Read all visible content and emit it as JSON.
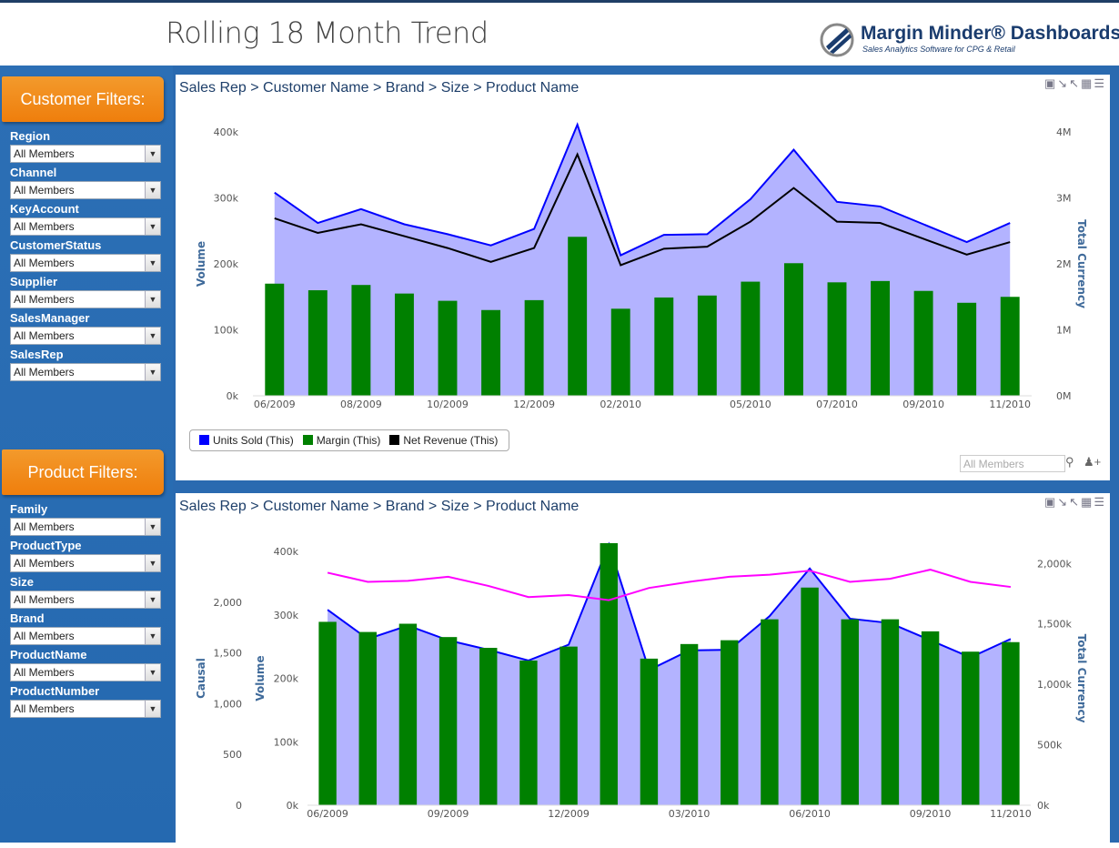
{
  "header": {
    "title": "Rolling 18 Month Trend",
    "logo_title": "Margin Minder® Dashboards",
    "logo_tagline": "Sales Analytics Software for CPG & Retail"
  },
  "customer_filters": {
    "heading": "Customer Filters:",
    "fields": [
      {
        "label": "Region",
        "value": "All Members"
      },
      {
        "label": "Channel",
        "value": "All Members"
      },
      {
        "label": "KeyAccount",
        "value": "All Members"
      },
      {
        "label": "CustomerStatus",
        "value": "All Members"
      },
      {
        "label": "Supplier",
        "value": "All Members"
      },
      {
        "label": "SalesManager",
        "value": "All Members"
      },
      {
        "label": "SalesRep",
        "value": "All Members"
      }
    ]
  },
  "product_filters": {
    "heading": "Product Filters:",
    "fields": [
      {
        "label": "Family",
        "value": "All Members"
      },
      {
        "label": "ProductType",
        "value": "All Members"
      },
      {
        "label": "Size",
        "value": "All Members"
      },
      {
        "label": "Brand",
        "value": "All Members"
      },
      {
        "label": "ProductName",
        "value": "All Members"
      },
      {
        "label": "ProductNumber",
        "value": "All Members"
      }
    ]
  },
  "panel1": {
    "breadcrumb": "Sales Rep > Customer Name > Brand > Size > Product Name",
    "search_placeholder": "All Members",
    "legend": [
      {
        "name": "Units Sold (This)",
        "color": "#0000ff"
      },
      {
        "name": "Margin (This)",
        "color": "#008000"
      },
      {
        "name": "Net Revenue (This)",
        "color": "#000000"
      }
    ]
  },
  "panel2": {
    "breadcrumb": "Sales Rep > Customer Name > Brand > Size > Product Name"
  },
  "chart_data": [
    {
      "type": "bar",
      "x_ticks": [
        "06/2009",
        "08/2009",
        "10/2009",
        "12/2009",
        "02/2010",
        "05/2010",
        "07/2010",
        "09/2010",
        "11/2010"
      ],
      "left_axis": {
        "label": "Volume",
        "ticks": [
          "0k",
          "100k",
          "200k",
          "300k",
          "400k"
        ],
        "range": [
          0,
          400000
        ]
      },
      "right_axis": {
        "label": "Total Currency",
        "ticks": [
          "0M",
          "1M",
          "2M",
          "3M",
          "4M"
        ],
        "range": [
          0,
          4000000
        ]
      },
      "series": [
        {
          "name": "Units Sold (This)",
          "kind": "area",
          "axis": "left",
          "color": "#0000ff",
          "fill": "#b3b3ff",
          "values": [
            308000,
            262000,
            283000,
            260000,
            245000,
            228000,
            253000,
            411000,
            213000,
            244000,
            245000,
            298000,
            373000,
            294000,
            287000,
            260000,
            233000,
            262000
          ]
        },
        {
          "name": "Margin (This)",
          "kind": "bar",
          "axis": "left",
          "color": "#008000",
          "values": [
            170000,
            160000,
            168000,
            155000,
            144000,
            130000,
            145000,
            241000,
            132000,
            149000,
            152000,
            173000,
            201000,
            172000,
            174000,
            159000,
            141000,
            150000
          ]
        },
        {
          "name": "Net Revenue (This)",
          "kind": "line",
          "axis": "right",
          "color": "#000000",
          "values": [
            2690000,
            2470000,
            2600000,
            2420000,
            2240000,
            2030000,
            2240000,
            3660000,
            1980000,
            2230000,
            2260000,
            2640000,
            3150000,
            2640000,
            2620000,
            2380000,
            2140000,
            2330000
          ]
        }
      ]
    },
    {
      "type": "bar",
      "x_ticks": [
        "06/2009",
        "09/2009",
        "12/2009",
        "03/2010",
        "06/2010",
        "09/2010",
        "11/2010"
      ],
      "far_left_axis": {
        "label": "Causal",
        "ticks": [
          "0",
          "500",
          "1,000",
          "1,500",
          "2,000"
        ],
        "range": [
          0,
          2500
        ]
      },
      "left_axis": {
        "label": "Volume",
        "ticks": [
          "0k",
          "100k",
          "200k",
          "300k",
          "400k"
        ],
        "range": [
          0,
          400000
        ]
      },
      "right_axis": {
        "label": "Total Currency",
        "ticks": [
          "0k",
          "500k",
          "1,000k",
          "1,500k",
          "2,000k"
        ],
        "range": [
          0,
          2100000
        ]
      },
      "series": [
        {
          "kind": "area",
          "axis": "left",
          "color": "#0000ff",
          "fill": "#b3b3ff",
          "values": [
            308000,
            262000,
            283000,
            260000,
            245000,
            228000,
            253000,
            411000,
            213000,
            244000,
            245000,
            298000,
            373000,
            294000,
            287000,
            260000,
            233000,
            262000
          ]
        },
        {
          "kind": "bar",
          "axis": "left",
          "color": "#008000",
          "values": [
            289000,
            273000,
            286000,
            265000,
            248000,
            228000,
            250000,
            413000,
            231000,
            254000,
            260000,
            293000,
            343000,
            293000,
            293000,
            274000,
            242000,
            257000
          ]
        },
        {
          "kind": "line",
          "axis": "far_left",
          "color": "#ff00ff",
          "values": [
            2290,
            2200,
            2210,
            2250,
            2160,
            2050,
            2070,
            2020,
            2140,
            2200,
            2250,
            2270,
            2310,
            2200,
            2230,
            2320,
            2200,
            2150
          ]
        }
      ]
    }
  ]
}
